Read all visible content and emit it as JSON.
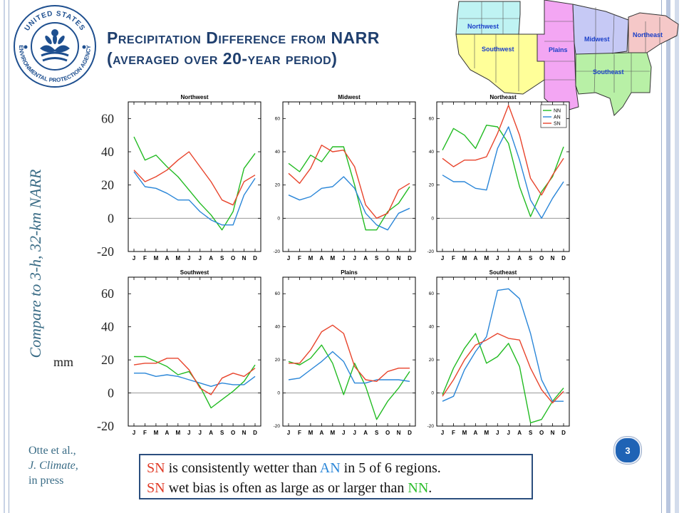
{
  "title": {
    "line1_first": "P",
    "line1_rest": "recipitation ",
    "line1_d": "D",
    "line1_rest2": "ifference from ",
    "line1_narr": "NARR",
    "line2_open": "(",
    "line2_a": "averaged over ",
    "line2_num": "20",
    "line2_b": "-year period",
    "line2_close": ")"
  },
  "logo": {
    "top_text": "UNITED STATES",
    "bottom_text": "ENVIRONMENTAL PROTECTION AGENCY"
  },
  "map": {
    "regions": [
      "Northwest",
      "Southwest",
      "Plains",
      "Midwest",
      "Northeast",
      "Southeast"
    ]
  },
  "vertical_label": "Compare to 3-h, 32-km NARR",
  "unit_label": "mm",
  "big_axis": {
    "ticks": [
      "60",
      "40",
      "20",
      "0",
      "-20"
    ]
  },
  "citation": {
    "line1": "Otte et al.,",
    "line2": "J. Climate,",
    "line3": "in press"
  },
  "slide_number": "3",
  "note": {
    "l1_sn": "SN",
    "l1_a": " is consistently wetter than ",
    "l1_an": "AN",
    "l1_b": " in 5 of 6 regions.",
    "l2_sn": "SN",
    "l2_a": " wet bias is often as large as or larger than ",
    "l2_nn": "NN",
    "l2_b": "."
  },
  "colors": {
    "NN": "#22bb22",
    "AN": "#2a86d8",
    "SN": "#e8442c",
    "title": "#1f3f6e"
  },
  "chart_data": [
    {
      "type": "line",
      "title": "Northwest",
      "x": [
        "J",
        "F",
        "M",
        "A",
        "M",
        "J",
        "J",
        "A",
        "S",
        "O",
        "N",
        "D"
      ],
      "ylim": [
        -20,
        70
      ],
      "yticks": [
        -20,
        0,
        20,
        40,
        60
      ],
      "series": [
        {
          "name": "NN",
          "values": [
            49,
            35,
            38,
            31,
            25,
            17,
            9,
            2,
            -7,
            4,
            30,
            39
          ]
        },
        {
          "name": "AN",
          "values": [
            28,
            19,
            18,
            15,
            11,
            11,
            4,
            -1,
            -4,
            -4,
            14,
            24
          ]
        },
        {
          "name": "SN",
          "values": [
            29,
            22,
            25,
            29,
            35,
            40,
            31,
            22,
            11,
            8,
            22,
            26
          ]
        }
      ]
    },
    {
      "type": "line",
      "title": "Midwest",
      "x": [
        "J",
        "F",
        "M",
        "A",
        "M",
        "J",
        "J",
        "A",
        "S",
        "O",
        "N",
        "D"
      ],
      "ylim": [
        -20,
        70
      ],
      "yticks": [
        -20,
        0,
        20,
        40,
        60
      ],
      "series": [
        {
          "name": "NN",
          "values": [
            33,
            28,
            38,
            34,
            43,
            43,
            20,
            -7,
            -7,
            4,
            9,
            19
          ]
        },
        {
          "name": "AN",
          "values": [
            14,
            11,
            13,
            18,
            19,
            25,
            18,
            3,
            -4,
            -7,
            3,
            6
          ]
        },
        {
          "name": "SN",
          "values": [
            27,
            21,
            30,
            44,
            40,
            41,
            31,
            8,
            0,
            3,
            17,
            21
          ]
        }
      ]
    },
    {
      "type": "line",
      "title": "Northeast",
      "x": [
        "J",
        "F",
        "M",
        "A",
        "M",
        "J",
        "J",
        "A",
        "S",
        "O",
        "N",
        "D"
      ],
      "ylim": [
        -20,
        70
      ],
      "yticks": [
        -20,
        0,
        20,
        40,
        60
      ],
      "legend": [
        "NN",
        "AN",
        "SN"
      ],
      "series": [
        {
          "name": "NN",
          "values": [
            41,
            54,
            50,
            42,
            56,
            55,
            45,
            19,
            1,
            16,
            25,
            43
          ]
        },
        {
          "name": "AN",
          "values": [
            26,
            22,
            22,
            18,
            17,
            42,
            55,
            35,
            11,
            0,
            12,
            22
          ]
        },
        {
          "name": "SN",
          "values": [
            36,
            31,
            35,
            35,
            37,
            51,
            68,
            50,
            24,
            14,
            26,
            36
          ]
        }
      ]
    },
    {
      "type": "line",
      "title": "Southwest",
      "x": [
        "J",
        "F",
        "M",
        "A",
        "M",
        "J",
        "J",
        "A",
        "S",
        "O",
        "N",
        "D"
      ],
      "ylim": [
        -20,
        70
      ],
      "yticks": [
        -20,
        0,
        20,
        40,
        60
      ],
      "series": [
        {
          "name": "NN",
          "values": [
            22,
            22,
            19,
            16,
            11,
            13,
            4,
            -9,
            -4,
            1,
            7,
            17
          ]
        },
        {
          "name": "AN",
          "values": [
            12,
            12,
            10,
            11,
            10,
            8,
            6,
            4,
            6,
            5,
            5,
            10
          ]
        },
        {
          "name": "SN",
          "values": [
            17,
            18,
            18,
            21,
            21,
            14,
            3,
            -1,
            9,
            12,
            10,
            15
          ]
        }
      ]
    },
    {
      "type": "line",
      "title": "Plains",
      "x": [
        "J",
        "F",
        "M",
        "A",
        "M",
        "J",
        "J",
        "A",
        "S",
        "O",
        "N",
        "D"
      ],
      "ylim": [
        -20,
        70
      ],
      "yticks": [
        -20,
        0,
        20,
        40,
        60
      ],
      "series": [
        {
          "name": "NN",
          "values": [
            19,
            17,
            21,
            29,
            18,
            -1,
            18,
            4,
            -16,
            -5,
            3,
            13
          ]
        },
        {
          "name": "AN",
          "values": [
            8,
            9,
            14,
            19,
            25,
            19,
            6,
            6,
            8,
            8,
            8,
            7
          ]
        },
        {
          "name": "SN",
          "values": [
            18,
            18,
            26,
            37,
            41,
            36,
            16,
            8,
            7,
            13,
            15,
            15
          ]
        }
      ]
    },
    {
      "type": "line",
      "title": "Southeast",
      "x": [
        "J",
        "F",
        "M",
        "A",
        "M",
        "J",
        "J",
        "A",
        "S",
        "O",
        "N",
        "D"
      ],
      "ylim": [
        -20,
        70
      ],
      "yticks": [
        -20,
        0,
        20,
        40,
        60
      ],
      "series": [
        {
          "name": "NN",
          "values": [
            -1,
            15,
            27,
            36,
            18,
            22,
            30,
            16,
            -18,
            -16,
            -5,
            3
          ]
        },
        {
          "name": "AN",
          "values": [
            -5,
            -2,
            14,
            25,
            34,
            62,
            63,
            57,
            36,
            8,
            -5,
            -5
          ]
        },
        {
          "name": "SN",
          "values": [
            -2,
            8,
            20,
            29,
            32,
            36,
            33,
            32,
            15,
            2,
            -6,
            1
          ]
        }
      ]
    }
  ]
}
